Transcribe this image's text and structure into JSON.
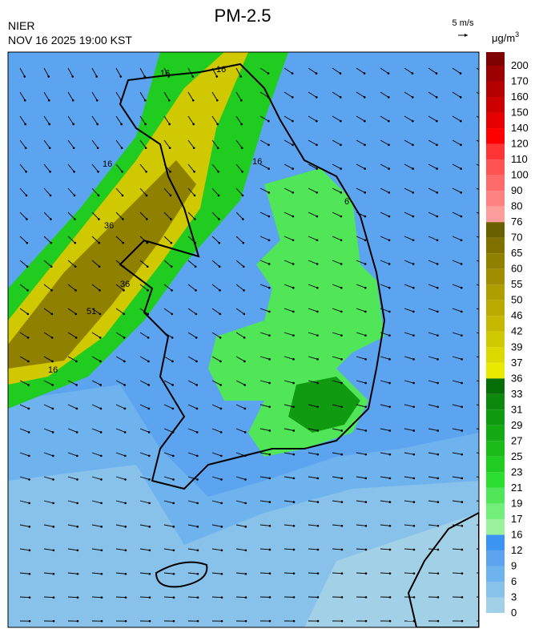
{
  "header": {
    "title": "PM-2.5",
    "agency": "NIER",
    "timestamp": "NOV 16 2025 19:00 KST",
    "wind_scale": "5 m/s"
  },
  "legend": {
    "unit": {
      "base": "μg/m",
      "exponent": "3"
    },
    "levels": [
      0,
      3,
      6,
      9,
      12,
      16,
      17,
      19,
      21,
      23,
      25,
      27,
      29,
      31,
      33,
      36,
      37,
      39,
      42,
      46,
      50,
      55,
      60,
      65,
      70,
      76,
      80,
      90,
      100,
      110,
      120,
      140,
      150,
      160,
      170,
      200
    ],
    "colors": [
      "#a2d0e6",
      "#88c2ea",
      "#6eb2ee",
      "#5ca4f0",
      "#3c94f2",
      "#9cf29c",
      "#72ee7a",
      "#50e658",
      "#2cde30",
      "#20cc20",
      "#1abc1a",
      "#14aa14",
      "#109a10",
      "#0c880c",
      "#066e06",
      "#eaea00",
      "#dcd800",
      "#d0c800",
      "#c6b800",
      "#baaa00",
      "#ae9e00",
      "#a08e00",
      "#908000",
      "#807000",
      "#6a6000",
      "#ff9c9c",
      "#ff8282",
      "#ff6a6a",
      "#ff5252",
      "#ff3434",
      "#ff0000",
      "#e60000",
      "#cc0000",
      "#b40000",
      "#9c0000",
      "#7e0000"
    ]
  },
  "map": {
    "contour_labels": [
      "16",
      "36",
      "51",
      "36",
      "16",
      "16",
      "16",
      "16",
      "6"
    ]
  }
}
